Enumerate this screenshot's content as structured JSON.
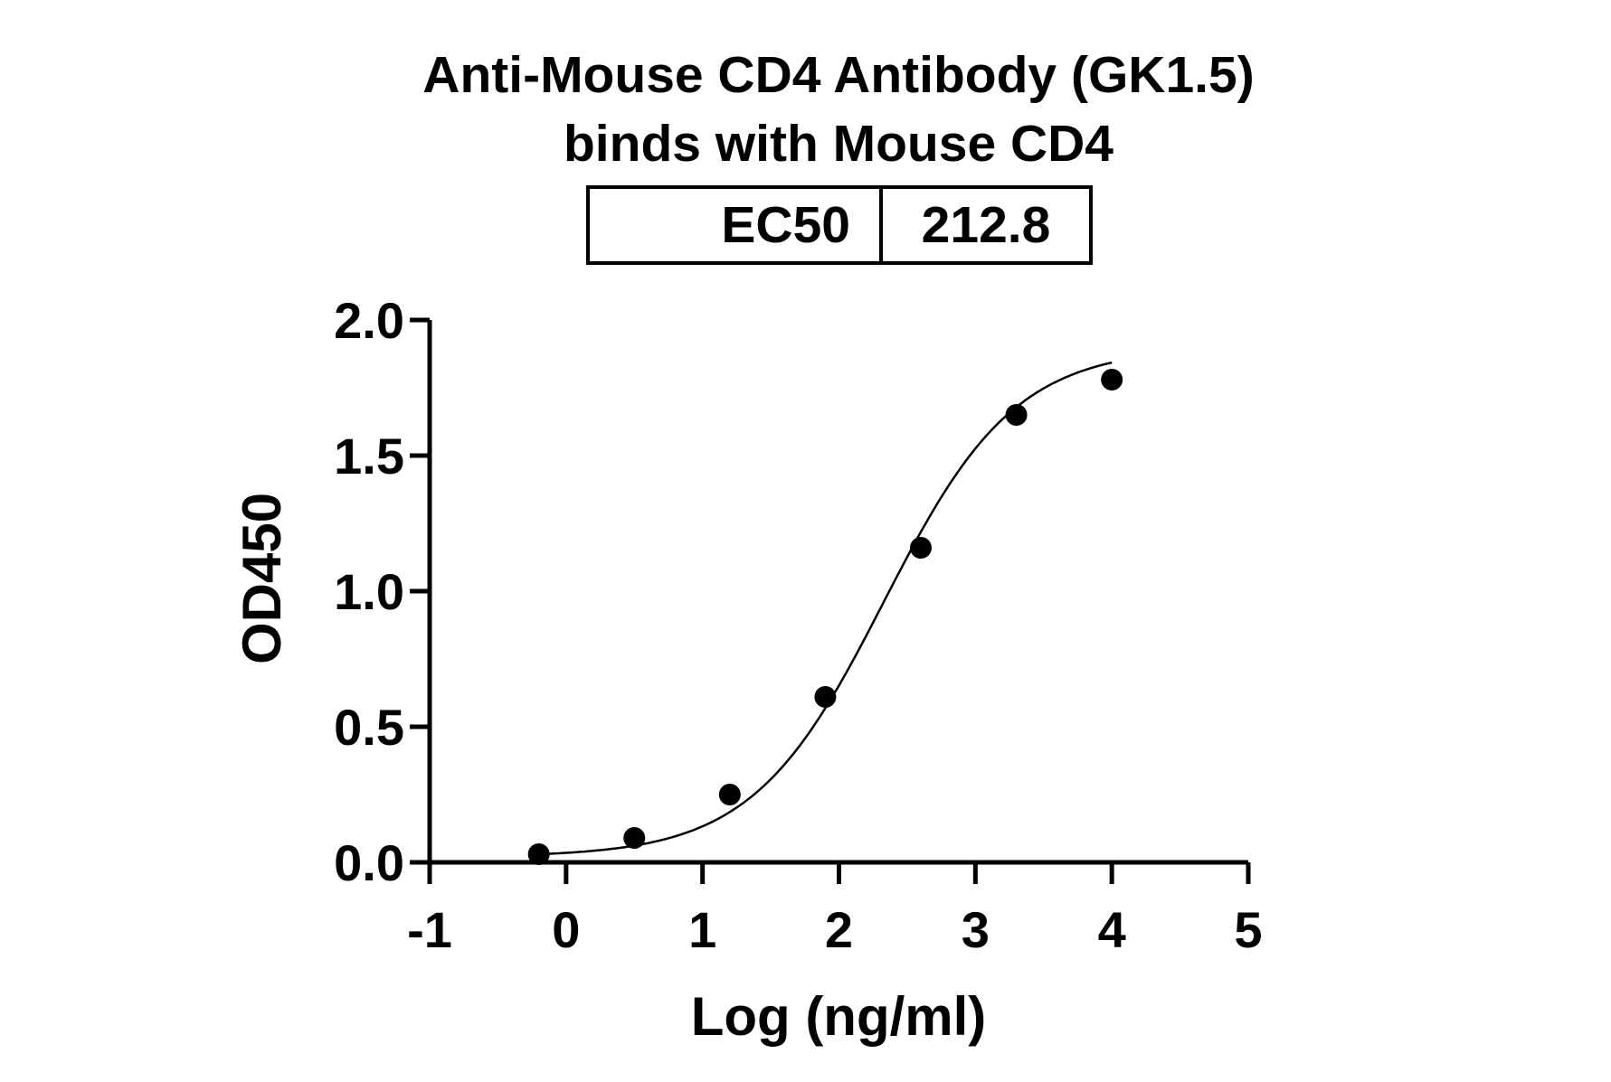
{
  "chart_data": {
    "type": "scatter",
    "title_lines": [
      "Anti-Mouse CD4 Antibody (GK1.5)",
      "binds with Mouse CD4"
    ],
    "ec50_table": {
      "label": "EC50",
      "value": "212.8"
    },
    "xlabel": "Log (ng/ml)",
    "ylabel": "OD450",
    "xlim": [
      -1,
      5
    ],
    "ylim": [
      0,
      2.0
    ],
    "xticks": [
      "-1",
      "0",
      "1",
      "2",
      "3",
      "4",
      "5"
    ],
    "yticks": [
      "0.0",
      "0.5",
      "1.0",
      "1.5",
      "2.0"
    ],
    "grid": false,
    "points": [
      {
        "x": -0.2,
        "y": 0.03
      },
      {
        "x": 0.5,
        "y": 0.09
      },
      {
        "x": 1.2,
        "y": 0.25
      },
      {
        "x": 1.9,
        "y": 0.61
      },
      {
        "x": 2.6,
        "y": 1.16
      },
      {
        "x": 3.3,
        "y": 1.65
      },
      {
        "x": 4.0,
        "y": 1.78
      }
    ],
    "fit_curve": "4PL sigmoid",
    "colors": {
      "points": "#000000",
      "line": "#000000"
    }
  }
}
